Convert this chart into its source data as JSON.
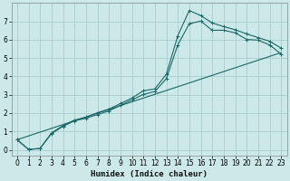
{
  "xlabel": "Humidex (Indice chaleur)",
  "background_color": "#cce8e8",
  "grid_color": "#aacccc",
  "line_color": "#1a6868",
  "xlim": [
    -0.5,
    23.5
  ],
  "ylim": [
    -0.3,
    8.0
  ],
  "x_ticks": [
    0,
    1,
    2,
    3,
    4,
    5,
    6,
    7,
    8,
    9,
    10,
    11,
    12,
    13,
    14,
    15,
    16,
    17,
    18,
    19,
    20,
    21,
    22,
    23
  ],
  "y_ticks": [
    0,
    1,
    2,
    3,
    4,
    5,
    6,
    7
  ],
  "line1_x": [
    0,
    1,
    2,
    3,
    4,
    5,
    6,
    7,
    8,
    9,
    10,
    11,
    12,
    13,
    14,
    15,
    16,
    17,
    18,
    19,
    20,
    21,
    22,
    23
  ],
  "line1_y": [
    0.55,
    0.02,
    0.07,
    0.92,
    1.32,
    1.62,
    1.78,
    2.02,
    2.22,
    2.52,
    2.82,
    3.22,
    3.32,
    4.12,
    6.22,
    7.6,
    7.32,
    6.92,
    6.72,
    6.55,
    6.32,
    6.12,
    5.92,
    5.55
  ],
  "line2_x": [
    0,
    1,
    2,
    3,
    4,
    5,
    6,
    7,
    8,
    9,
    10,
    11,
    12,
    13,
    14,
    15,
    16,
    17,
    18,
    19,
    20,
    21,
    22,
    23
  ],
  "line2_y": [
    0.55,
    0.02,
    0.07,
    0.88,
    1.28,
    1.58,
    1.72,
    1.92,
    2.12,
    2.42,
    2.72,
    3.02,
    3.18,
    3.88,
    5.72,
    6.88,
    7.02,
    6.52,
    6.52,
    6.38,
    6.02,
    5.98,
    5.72,
    5.22
  ],
  "line3_x": [
    0,
    23
  ],
  "line3_y": [
    0.55,
    5.3
  ],
  "tick_fontsize": 5.5,
  "xlabel_fontsize": 6.5
}
